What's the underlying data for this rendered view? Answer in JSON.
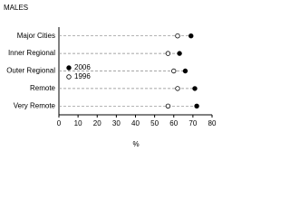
{
  "chart_data": {
    "type": "dot",
    "title": "MALES",
    "x_label": "%",
    "categories": [
      "Major Cities",
      "Inner Regional",
      "Outer Regional",
      "Remote",
      "Very Remote"
    ],
    "series": [
      {
        "name": "2006",
        "color": "#000000",
        "marker": "filled",
        "values": [
          69,
          63,
          66,
          71,
          72
        ]
      },
      {
        "name": "1996",
        "color": "#000000",
        "marker": "open",
        "values": [
          62,
          57,
          60,
          62,
          57
        ]
      }
    ],
    "xlim": [
      0,
      80
    ],
    "xticks": [
      0,
      10,
      20,
      30,
      40,
      50,
      60,
      70,
      80
    ]
  }
}
